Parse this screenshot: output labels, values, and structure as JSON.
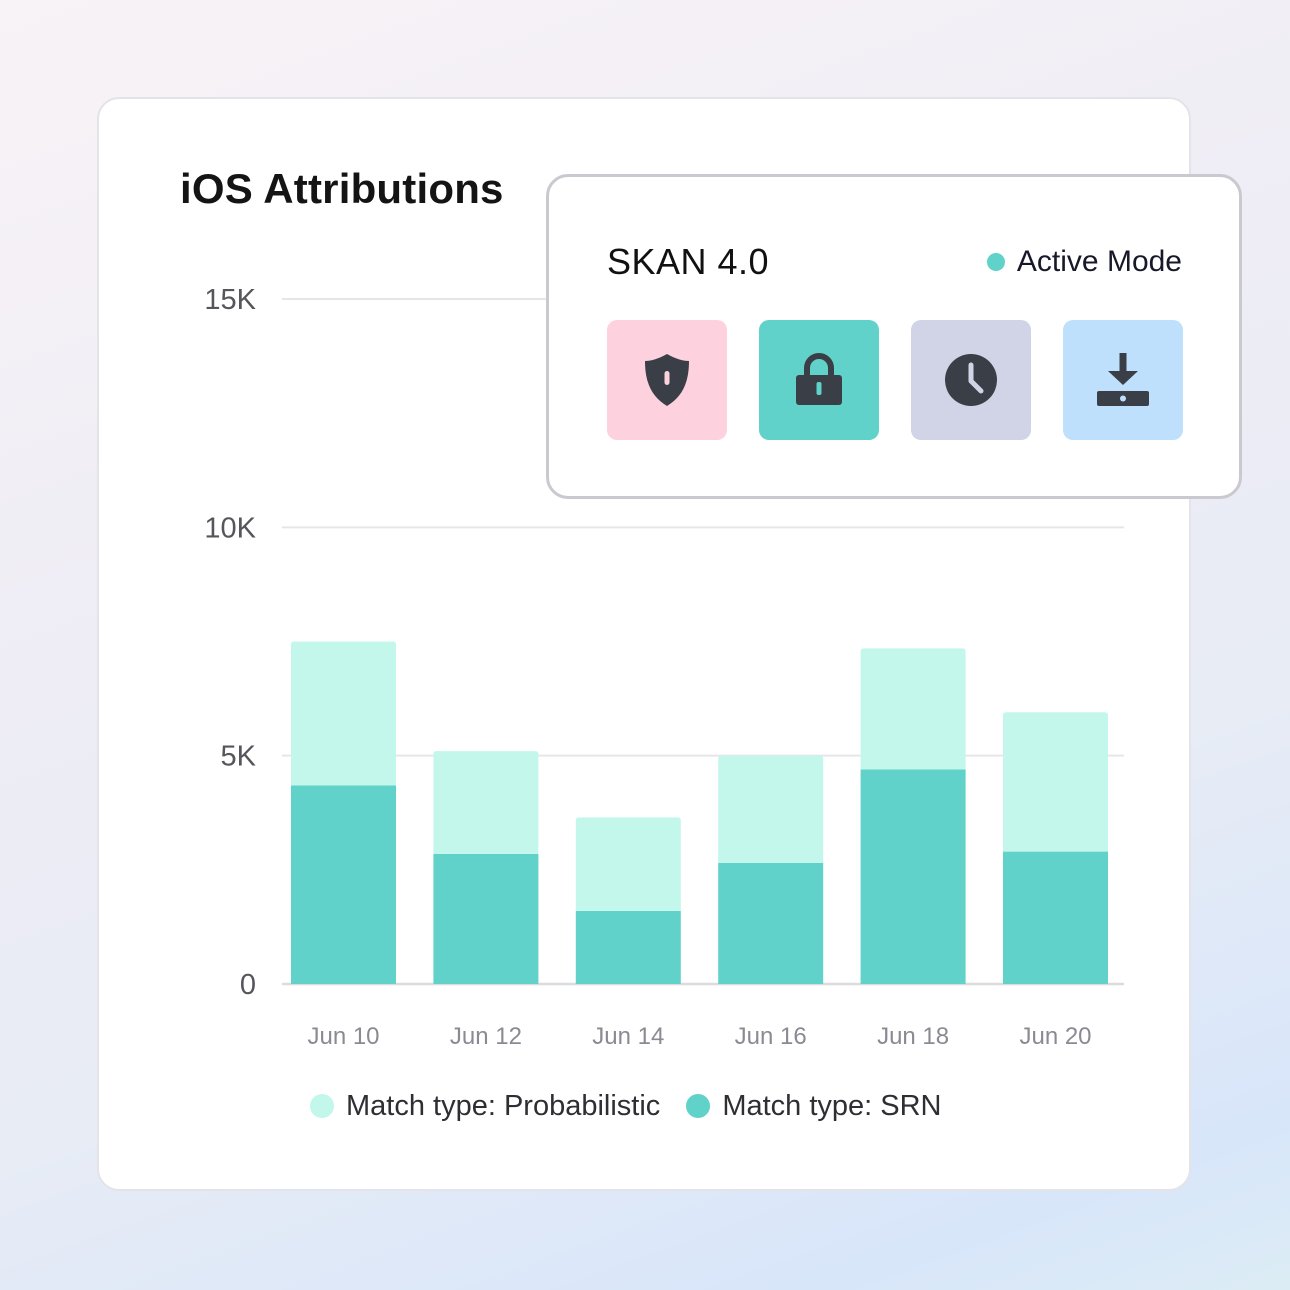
{
  "card": {
    "title": "iOS Attributions"
  },
  "chart_data": {
    "type": "bar",
    "stacked": true,
    "title": "iOS Attributions",
    "xlabel": "",
    "ylabel": "",
    "categories": [
      "Jun 10",
      "Jun 12",
      "Jun 14",
      "Jun 16",
      "Jun 18",
      "Jun 20"
    ],
    "series": [
      {
        "name": "Match type: SRN",
        "color": "#60d2c9",
        "values": [
          4350,
          2850,
          1600,
          2650,
          4700,
          2900
        ]
      },
      {
        "name": "Match type: Probabilistic",
        "color": "#c4f7eb",
        "values": [
          3150,
          2250,
          2050,
          2350,
          2650,
          3050
        ]
      }
    ],
    "ylim": [
      0,
      15000
    ],
    "yticks": [
      0,
      5000,
      10000,
      15000
    ],
    "ytick_labels": [
      "0",
      "5K",
      "10K",
      "15K"
    ],
    "grid": true,
    "legend_position": "bottom"
  },
  "legend": [
    {
      "label": "Match type: Probabilistic",
      "color": "#c4f7eb"
    },
    {
      "label": "Match type: SRN",
      "color": "#60d2c9"
    }
  ],
  "popup": {
    "title": "SKAN 4.0",
    "status_label": "Active Mode",
    "status_color": "#60d2c9",
    "tiles": [
      {
        "icon": "shield-icon",
        "background": "#fdd1de"
      },
      {
        "icon": "lock-icon",
        "background": "#60d2c9"
      },
      {
        "icon": "clock-icon",
        "background": "#d0d4e6"
      },
      {
        "icon": "download-icon",
        "background": "#bfe0fd"
      }
    ]
  }
}
